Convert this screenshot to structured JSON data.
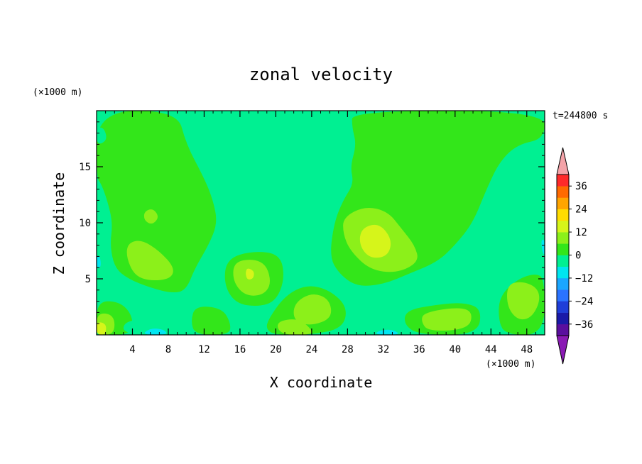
{
  "chart_data": {
    "type": "heatmap",
    "title": "zonal velocity",
    "xlabel": "X coordinate",
    "ylabel": "Z coordinate",
    "x_unit": "(×1000 m)",
    "y_unit": "(×1000 m)",
    "time_label": "t=244800 s",
    "xlim": [
      0,
      50
    ],
    "ylim": [
      0,
      20
    ],
    "x_ticks": [
      4,
      8,
      12,
      16,
      20,
      24,
      28,
      32,
      36,
      40,
      44,
      48
    ],
    "x_tick_labels": [
      "4",
      "8",
      "12",
      "16",
      "20",
      "24",
      "28",
      "32",
      "36",
      "40",
      "44",
      "48"
    ],
    "y_ticks": [
      5,
      10,
      15
    ],
    "y_tick_labels": [
      "5",
      "10",
      "15"
    ],
    "colorbar": {
      "levels": [
        -42,
        -36,
        -30,
        -24,
        -18,
        -12,
        -6,
        0,
        6,
        12,
        18,
        24,
        30,
        36,
        42
      ],
      "colors": [
        "#5a0f9e",
        "#1a1aa8",
        "#1f3ed8",
        "#2a73ff",
        "#1aa6ff",
        "#00e6f0",
        "#00f092",
        "#33e61a",
        "#8cf01a",
        "#d6f51a",
        "#ffdc00",
        "#ffa500",
        "#ff6a00",
        "#ff2a2a"
      ],
      "under_color": "#8a1ab4",
      "over_color": "#f4a3a8",
      "tick_values": [
        -36,
        -24,
        -12,
        0,
        12,
        24,
        36
      ],
      "tick_labels": [
        "−36",
        "−24",
        "−12",
        "0",
        "12",
        "24",
        "36"
      ]
    },
    "grid": false,
    "legend": "colorbar-right",
    "base_color": "#00f092",
    "regions": [
      {
        "level": 0,
        "points": [
          [
            0,
            20
          ],
          [
            9,
            20
          ],
          [
            10,
            17
          ],
          [
            12,
            14
          ],
          [
            13,
            12
          ],
          [
            13.5,
            10
          ],
          [
            12.5,
            8
          ],
          [
            11,
            6
          ],
          [
            10,
            4
          ],
          [
            8.5,
            3.7
          ],
          [
            6,
            4.2
          ],
          [
            3.5,
            5
          ],
          [
            2,
            6
          ],
          [
            1.5,
            8
          ],
          [
            1.8,
            10
          ],
          [
            1.2,
            12
          ],
          [
            0.5,
            13.5
          ],
          [
            0,
            14
          ]
        ]
      },
      {
        "level": 0,
        "points": [
          [
            28.5,
            20
          ],
          [
            50,
            20
          ],
          [
            50,
            17.5
          ],
          [
            47,
            17
          ],
          [
            45,
            15.5
          ],
          [
            43.5,
            13
          ],
          [
            42,
            10
          ],
          [
            40,
            8
          ],
          [
            38,
            6.5
          ],
          [
            35,
            5.5
          ],
          [
            32,
            4.5
          ],
          [
            29,
            4.3
          ],
          [
            27,
            5.5
          ],
          [
            26,
            7
          ],
          [
            26.5,
            10
          ],
          [
            27.5,
            12
          ],
          [
            28.7,
            13.5
          ],
          [
            28.3,
            15
          ],
          [
            29,
            17
          ],
          [
            28.5,
            18.5
          ]
        ]
      },
      {
        "level": 0,
        "points": [
          [
            14.5,
            6.8
          ],
          [
            17.5,
            7.5
          ],
          [
            20.5,
            7.2
          ],
          [
            21,
            5
          ],
          [
            20,
            3
          ],
          [
            18,
            2.5
          ],
          [
            15.5,
            2.8
          ],
          [
            14.2,
            4.5
          ]
        ]
      },
      {
        "level": 0,
        "points": [
          [
            19,
            1.2
          ],
          [
            21,
            3.5
          ],
          [
            23.5,
            4.5
          ],
          [
            26,
            4
          ],
          [
            28,
            2.5
          ],
          [
            27.5,
            0.6
          ],
          [
            24,
            0
          ],
          [
            20,
            0
          ],
          [
            19,
            0.4
          ]
        ]
      },
      {
        "level": 0,
        "points": [
          [
            11,
            2.6
          ],
          [
            14,
            2.4
          ],
          [
            15,
            1
          ],
          [
            14.8,
            0
          ],
          [
            11,
            0
          ],
          [
            10.5,
            1.2
          ]
        ]
      },
      {
        "level": 0,
        "points": [
          [
            34.5,
            2.2
          ],
          [
            38,
            2.7
          ],
          [
            41,
            2.9
          ],
          [
            43,
            2.3
          ],
          [
            42.5,
            0
          ],
          [
            36,
            0
          ],
          [
            34.3,
            0.9
          ]
        ]
      },
      {
        "level": 0,
        "points": [
          [
            45,
            3.5
          ],
          [
            47,
            5
          ],
          [
            49,
            5.5
          ],
          [
            50,
            5
          ],
          [
            50,
            0
          ],
          [
            45.5,
            0
          ],
          [
            44.8,
            1.5
          ]
        ]
      },
      {
        "level": 0,
        "points": [
          [
            0,
            3
          ],
          [
            2.5,
            3
          ],
          [
            4,
            1.8
          ],
          [
            4,
            0
          ],
          [
            0,
            0
          ]
        ]
      },
      {
        "level": 6,
        "points": [
          [
            3.5,
            8.2
          ],
          [
            5,
            8.5
          ],
          [
            7,
            7.5
          ],
          [
            8.7,
            6
          ],
          [
            8.3,
            5
          ],
          [
            6,
            4.8
          ],
          [
            4.2,
            5.3
          ],
          [
            3.3,
            7
          ]
        ]
      },
      {
        "level": 6,
        "points": [
          [
            5.3,
            11
          ],
          [
            6.3,
            11.3
          ],
          [
            7,
            10.5
          ],
          [
            6.2,
            9.8
          ],
          [
            5.3,
            10.2
          ]
        ]
      },
      {
        "level": 6,
        "points": [
          [
            15.3,
            6.5
          ],
          [
            17.5,
            6.8
          ],
          [
            19,
            6.2
          ],
          [
            19.5,
            4.5
          ],
          [
            18.5,
            3.5
          ],
          [
            16.5,
            3.5
          ],
          [
            15.2,
            4.8
          ]
        ]
      },
      {
        "level": 6,
        "points": [
          [
            22,
            2.8
          ],
          [
            24,
            3.8
          ],
          [
            26,
            3.2
          ],
          [
            26.3,
            1.5
          ],
          [
            24,
            0.8
          ],
          [
            22,
            1.2
          ]
        ]
      },
      {
        "level": 6,
        "points": [
          [
            20.5,
            0
          ],
          [
            20,
            1.2
          ],
          [
            22.5,
            1.5
          ],
          [
            24,
            0.5
          ],
          [
            24,
            0
          ]
        ]
      },
      {
        "level": 6,
        "points": [
          [
            27.5,
            10.5
          ],
          [
            30,
            11.5
          ],
          [
            32.5,
            11
          ],
          [
            34,
            9.5
          ],
          [
            35.5,
            8
          ],
          [
            36,
            6.5
          ],
          [
            33.5,
            5.5
          ],
          [
            30.5,
            5.8
          ],
          [
            28.3,
            7.5
          ],
          [
            27.5,
            9
          ]
        ]
      },
      {
        "level": 6,
        "points": [
          [
            45.8,
            4.5
          ],
          [
            47.5,
            4.8
          ],
          [
            49.2,
            4.2
          ],
          [
            49.5,
            3
          ],
          [
            48.5,
            1.5
          ],
          [
            47,
            1.3
          ],
          [
            45.8,
            2.5
          ]
        ]
      },
      {
        "level": 6,
        "points": [
          [
            36.5,
            2
          ],
          [
            40.5,
            2.5
          ],
          [
            42,
            2
          ],
          [
            41.5,
            0.5
          ],
          [
            37,
            0.3
          ],
          [
            36.2,
            1.2
          ]
        ]
      },
      {
        "level": 6,
        "points": [
          [
            0,
            2
          ],
          [
            2,
            1.8
          ],
          [
            2,
            0
          ],
          [
            0,
            0
          ]
        ]
      },
      {
        "level": 12,
        "points": [
          [
            29.5,
            9.5
          ],
          [
            31.5,
            10
          ],
          [
            33,
            8.5
          ],
          [
            32.5,
            7
          ],
          [
            30.5,
            6.8
          ],
          [
            29.3,
            8
          ]
        ]
      },
      {
        "level": 12,
        "points": [
          [
            16.8,
            6
          ],
          [
            17.6,
            5.7
          ],
          [
            17.5,
            5
          ],
          [
            16.8,
            4.9
          ],
          [
            16.6,
            5.5
          ]
        ]
      },
      {
        "level": 12,
        "points": [
          [
            0,
            1.2
          ],
          [
            1.1,
            1
          ],
          [
            1,
            0
          ],
          [
            0,
            0
          ]
        ]
      },
      {
        "level": -6,
        "points": [
          [
            21.5,
            13
          ],
          [
            24,
            13.3
          ],
          [
            25.5,
            12
          ],
          [
            26,
            10
          ],
          [
            25.5,
            8
          ],
          [
            23,
            7.8
          ],
          [
            21.8,
            8.8
          ],
          [
            21.3,
            11
          ]
        ]
      },
      {
        "level": -6,
        "points": [
          [
            0,
            10.5
          ],
          [
            0.8,
            10
          ],
          [
            1.5,
            8
          ],
          [
            1.2,
            6
          ],
          [
            0,
            5.5
          ]
        ]
      },
      {
        "level": -6,
        "points": [
          [
            48.8,
            9.5
          ],
          [
            50,
            9.5
          ],
          [
            50,
            6
          ],
          [
            49,
            7
          ]
        ]
      },
      {
        "level": -6,
        "points": [
          [
            37.5,
            4.2
          ],
          [
            40,
            4.7
          ],
          [
            42,
            4.5
          ],
          [
            43,
            3.5
          ],
          [
            41,
            3
          ],
          [
            38,
            3.3
          ]
        ]
      },
      {
        "level": -6,
        "points": [
          [
            3,
            1.2
          ],
          [
            6,
            1.5
          ],
          [
            8.5,
            1.3
          ],
          [
            10,
            0.3
          ],
          [
            10,
            0
          ],
          [
            3,
            0
          ]
        ]
      },
      {
        "level": -6,
        "points": [
          [
            29.5,
            0
          ],
          [
            30.5,
            0.9
          ],
          [
            33,
            1
          ],
          [
            35,
            0.5
          ],
          [
            35,
            0
          ]
        ]
      },
      {
        "level": -6,
        "points": [
          [
            43,
            0
          ],
          [
            43.3,
            1
          ],
          [
            45,
            1.2
          ],
          [
            45.5,
            0
          ]
        ]
      },
      {
        "level": -6,
        "points": [
          [
            0,
            18.5
          ],
          [
            0.8,
            18.5
          ],
          [
            1.2,
            17.5
          ],
          [
            0.5,
            17
          ],
          [
            0,
            17.2
          ]
        ]
      },
      {
        "level": -12,
        "points": [
          [
            31,
            0
          ],
          [
            31.5,
            0.4
          ],
          [
            33,
            0.5
          ],
          [
            34,
            0
          ]
        ]
      },
      {
        "level": -12,
        "points": [
          [
            0,
            7
          ],
          [
            0.4,
            7
          ],
          [
            0.5,
            6
          ],
          [
            0,
            6
          ]
        ]
      },
      {
        "level": -12,
        "points": [
          [
            5,
            0
          ],
          [
            6,
            0.6
          ],
          [
            7.5,
            0.5
          ],
          [
            8,
            0
          ]
        ]
      },
      {
        "level": -12,
        "points": [
          [
            49.6,
            8.5
          ],
          [
            50,
            8.5
          ],
          [
            50,
            7
          ],
          [
            49.7,
            7.5
          ]
        ]
      }
    ]
  }
}
